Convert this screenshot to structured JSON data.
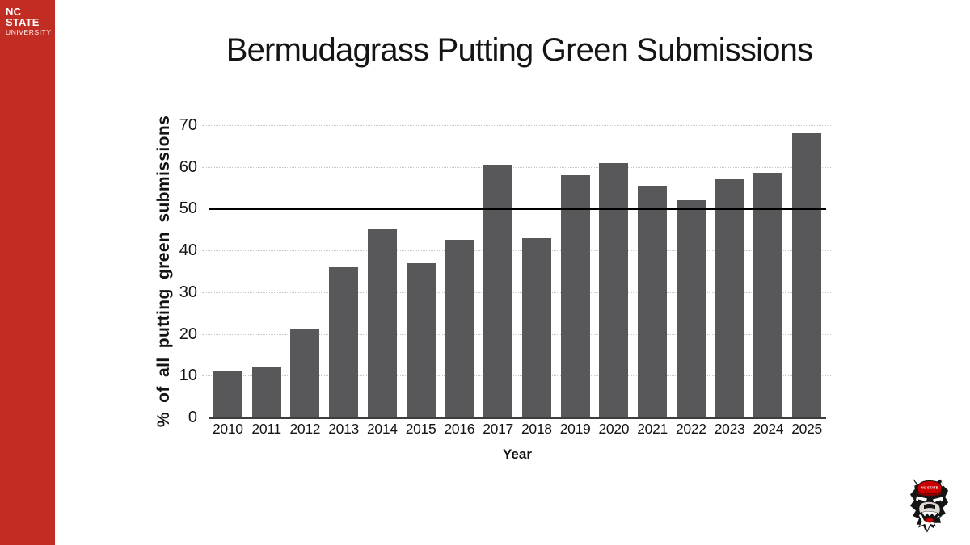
{
  "brand": {
    "line1": "NC STATE",
    "line2": "UNIVERSITY",
    "sidebar_color": "#C22D23"
  },
  "chart_data": {
    "type": "bar",
    "title": "Bermudagrass Putting Green Submissions",
    "xlabel": "Year",
    "ylabel": "% of all putting green submissions",
    "categories": [
      "2010",
      "2011",
      "2012",
      "2013",
      "2014",
      "2015",
      "2016",
      "2017",
      "2018",
      "2019",
      "2020",
      "2021",
      "2022",
      "2023",
      "2024",
      "2025"
    ],
    "values": [
      11,
      12,
      21,
      36,
      45,
      37,
      42.5,
      60.5,
      43,
      58,
      61,
      55.5,
      52,
      57,
      58.5,
      68
    ],
    "ylim": [
      0,
      70
    ],
    "yticks": [
      0,
      10,
      20,
      30,
      40,
      50,
      60,
      70
    ],
    "grid": "horizontal-dotted",
    "legend": null,
    "reference_line": {
      "value": 50,
      "color": "#000000"
    },
    "bar_color": "#58585A"
  },
  "logo": {
    "name": "nc-state-wolf-mascot",
    "hat_text": "NC STATE"
  }
}
